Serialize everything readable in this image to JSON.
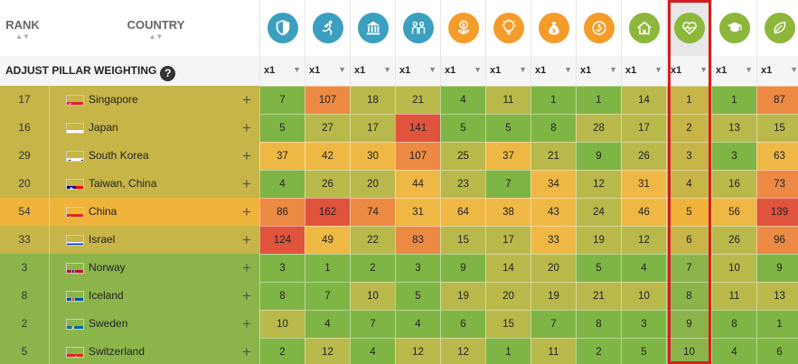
{
  "header": {
    "rank_label": "RANK",
    "country_label": "COUNTRY",
    "sort_arrows": "▲▼"
  },
  "pillars": [
    {
      "icon": "shield-icon",
      "color": "#3b9fbf"
    },
    {
      "icon": "runner-icon",
      "color": "#3b9fbf"
    },
    {
      "icon": "bank-icon",
      "color": "#3b9fbf"
    },
    {
      "icon": "people-icon",
      "color": "#3b9fbf"
    },
    {
      "icon": "dollar-plant-icon",
      "color": "#f39c2a"
    },
    {
      "icon": "lightbulb-icon",
      "color": "#f39c2a"
    },
    {
      "icon": "money-bag-icon",
      "color": "#f39c2a"
    },
    {
      "icon": "dollar-check-icon",
      "color": "#f39c2a"
    },
    {
      "icon": "house-icon",
      "color": "#8cb73a"
    },
    {
      "icon": "heart-pulse-icon",
      "color": "#8cb73a"
    },
    {
      "icon": "graduation-cap-icon",
      "color": "#8cb73a"
    },
    {
      "icon": "leaf-icon",
      "color": "#8cb73a"
    }
  ],
  "adjust": {
    "label": "ADJUST PILLAR WEIGHTING",
    "help": "?",
    "weight_label": "x1",
    "dropdown_arrow": "▼"
  },
  "plus_symbol": "+",
  "rows": [
    {
      "rank": "17",
      "country": "Singapore",
      "flag": "sg",
      "scores": [
        "7",
        "107",
        "18",
        "21",
        "4",
        "11",
        "1",
        "1",
        "14",
        "1",
        "1",
        "87"
      ]
    },
    {
      "rank": "16",
      "country": "Japan",
      "flag": "jp",
      "scores": [
        "5",
        "27",
        "17",
        "141",
        "5",
        "5",
        "8",
        "28",
        "17",
        "2",
        "13",
        "15"
      ]
    },
    {
      "rank": "29",
      "country": "South Korea",
      "flag": "kr",
      "scores": [
        "37",
        "42",
        "30",
        "107",
        "25",
        "37",
        "21",
        "9",
        "26",
        "3",
        "3",
        "63"
      ]
    },
    {
      "rank": "20",
      "country": "Taiwan, China",
      "flag": "tw",
      "scores": [
        "4",
        "26",
        "20",
        "44",
        "23",
        "7",
        "34",
        "12",
        "31",
        "4",
        "16",
        "73"
      ]
    },
    {
      "rank": "54",
      "country": "China",
      "flag": "cn",
      "scores": [
        "86",
        "162",
        "74",
        "31",
        "64",
        "38",
        "43",
        "24",
        "46",
        "5",
        "56",
        "139"
      ]
    },
    {
      "rank": "33",
      "country": "Israel",
      "flag": "il",
      "scores": [
        "124",
        "49",
        "22",
        "83",
        "15",
        "17",
        "33",
        "19",
        "12",
        "6",
        "26",
        "96"
      ]
    },
    {
      "rank": "3",
      "country": "Norway",
      "flag": "no",
      "scores": [
        "3",
        "1",
        "2",
        "3",
        "9",
        "14",
        "20",
        "5",
        "4",
        "7",
        "10",
        "9"
      ]
    },
    {
      "rank": "8",
      "country": "Iceland",
      "flag": "is",
      "scores": [
        "8",
        "7",
        "10",
        "5",
        "19",
        "20",
        "19",
        "21",
        "10",
        "8",
        "11",
        "13"
      ]
    },
    {
      "rank": "2",
      "country": "Sweden",
      "flag": "se",
      "scores": [
        "10",
        "4",
        "7",
        "4",
        "6",
        "15",
        "7",
        "8",
        "3",
        "9",
        "8",
        "1"
      ]
    },
    {
      "rank": "5",
      "country": "Switzerland",
      "flag": "ch",
      "scores": [
        "2",
        "12",
        "4",
        "12",
        "12",
        "1",
        "11",
        "2",
        "5",
        "10",
        "4",
        "6"
      ]
    }
  ],
  "colors": {
    "band_green": "#8bb54a",
    "band_olive": "#c7b547",
    "band_orange": "#f0b43c",
    "score_green": "#7fb544",
    "score_olive": "#b9b94b",
    "score_yellow": "#efb845",
    "score_orange": "#ec8a43",
    "score_red": "#e0533d",
    "highlight": "#d0201f"
  }
}
